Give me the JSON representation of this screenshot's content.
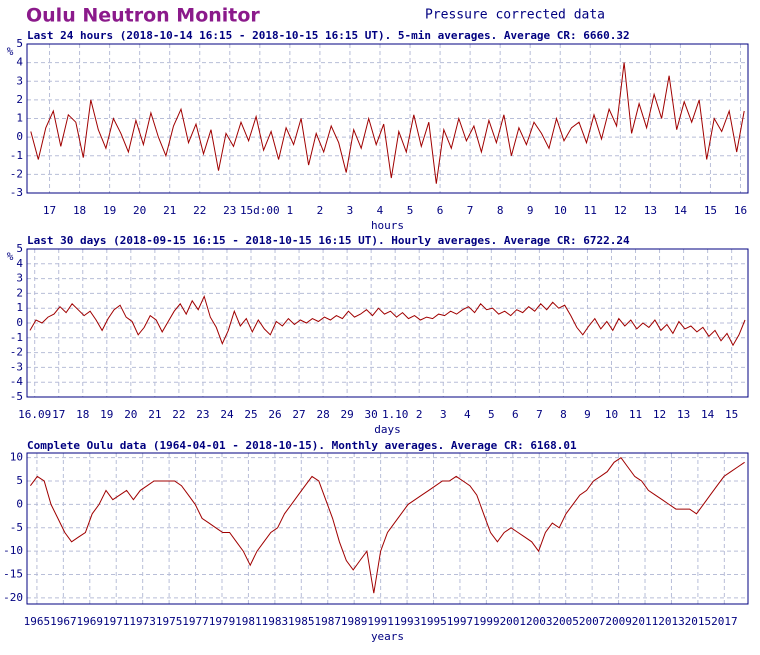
{
  "header": {
    "title": "Oulu Neutron Monitor",
    "subtitle": "Pressure corrected data"
  },
  "chart_data": [
    {
      "type": "line",
      "title": "Last 24 hours (2018-10-14 16:15 - 2018-10-15 16:15 UT). 5-min averages. Average CR: 6660.32",
      "y_label": "%",
      "x_label": "hours",
      "color": "#a00000",
      "grid": true,
      "xlim": [
        0,
        24
      ],
      "ylim": [
        -3,
        5
      ],
      "yticks": [
        -3,
        -2,
        -1,
        0,
        1,
        2,
        3,
        4,
        5
      ],
      "xticks": [
        {
          "value": 0.75,
          "label": "17"
        },
        {
          "value": 1.75,
          "label": "18"
        },
        {
          "value": 2.75,
          "label": "19"
        },
        {
          "value": 3.75,
          "label": "20"
        },
        {
          "value": 4.75,
          "label": "21"
        },
        {
          "value": 5.75,
          "label": "22"
        },
        {
          "value": 6.75,
          "label": "23"
        },
        {
          "value": 7.75,
          "label": "15d:00"
        },
        {
          "value": 8.75,
          "label": "1"
        },
        {
          "value": 9.75,
          "label": "2"
        },
        {
          "value": 10.75,
          "label": "3"
        },
        {
          "value": 11.75,
          "label": "4"
        },
        {
          "value": 12.75,
          "label": "5"
        },
        {
          "value": 13.75,
          "label": "6"
        },
        {
          "value": 14.75,
          "label": "7"
        },
        {
          "value": 15.75,
          "label": "8"
        },
        {
          "value": 16.75,
          "label": "9"
        },
        {
          "value": 17.75,
          "label": "10"
        },
        {
          "value": 18.75,
          "label": "11"
        },
        {
          "value": 19.75,
          "label": "12"
        },
        {
          "value": 20.75,
          "label": "13"
        },
        {
          "value": 21.75,
          "label": "14"
        },
        {
          "value": 22.75,
          "label": "15"
        },
        {
          "value": 23.75,
          "label": "16"
        }
      ],
      "values": [
        0.3,
        -1.2,
        0.5,
        1.4,
        -0.5,
        1.2,
        0.8,
        -1.1,
        2.0,
        0.4,
        -0.6,
        1.0,
        0.2,
        -0.8,
        0.9,
        -0.4,
        1.3,
        0.0,
        -1.0,
        0.6,
        1.5,
        -0.3,
        0.7,
        -0.9,
        0.4,
        -1.8,
        0.2,
        -0.5,
        0.8,
        -0.2,
        1.1,
        -0.7,
        0.3,
        -1.2,
        0.5,
        -0.4,
        1.0,
        -1.5,
        0.2,
        -0.8,
        0.6,
        -0.3,
        -1.9,
        0.4,
        -0.6,
        1.0,
        -0.4,
        0.7,
        -2.2,
        0.3,
        -0.8,
        1.2,
        -0.5,
        0.8,
        -2.5,
        0.4,
        -0.6,
        1.0,
        -0.2,
        0.6,
        -0.8,
        0.9,
        -0.3,
        1.2,
        -1.0,
        0.5,
        -0.4,
        0.8,
        0.2,
        -0.6,
        1.0,
        -0.2,
        0.5,
        0.8,
        -0.3,
        1.2,
        -0.1,
        1.5,
        0.6,
        4.0,
        0.2,
        1.8,
        0.5,
        2.3,
        1.0,
        3.3,
        0.4,
        1.9,
        0.8,
        2.0,
        -1.2,
        1.0,
        0.3,
        1.4,
        -0.8,
        1.4
      ]
    },
    {
      "type": "line",
      "title": "Last 30 days (2018-09-15 16:15 - 2018-10-15 16:15 UT). Hourly averages. Average CR: 6722.24",
      "y_label": "%",
      "x_label": "days",
      "color": "#a00000",
      "grid": true,
      "xlim": [
        0,
        30
      ],
      "ylim": [
        -5,
        5
      ],
      "yticks": [
        -5,
        -4,
        -3,
        -2,
        -1,
        0,
        1,
        2,
        3,
        4,
        5
      ],
      "xticks": [
        {
          "value": 0.32,
          "label": "16.09"
        },
        {
          "value": 1.32,
          "label": "17"
        },
        {
          "value": 2.32,
          "label": "18"
        },
        {
          "value": 3.32,
          "label": "19"
        },
        {
          "value": 4.32,
          "label": "20"
        },
        {
          "value": 5.32,
          "label": "21"
        },
        {
          "value": 6.32,
          "label": "22"
        },
        {
          "value": 7.32,
          "label": "23"
        },
        {
          "value": 8.32,
          "label": "24"
        },
        {
          "value": 9.32,
          "label": "25"
        },
        {
          "value": 10.32,
          "label": "26"
        },
        {
          "value": 11.32,
          "label": "27"
        },
        {
          "value": 12.32,
          "label": "28"
        },
        {
          "value": 13.32,
          "label": "29"
        },
        {
          "value": 14.32,
          "label": "30"
        },
        {
          "value": 15.32,
          "label": "1.10"
        },
        {
          "value": 16.32,
          "label": "2"
        },
        {
          "value": 17.32,
          "label": "3"
        },
        {
          "value": 18.32,
          "label": "4"
        },
        {
          "value": 19.32,
          "label": "5"
        },
        {
          "value": 20.32,
          "label": "6"
        },
        {
          "value": 21.32,
          "label": "7"
        },
        {
          "value": 22.32,
          "label": "8"
        },
        {
          "value": 23.32,
          "label": "9"
        },
        {
          "value": 24.32,
          "label": "10"
        },
        {
          "value": 25.32,
          "label": "11"
        },
        {
          "value": 26.32,
          "label": "12"
        },
        {
          "value": 27.32,
          "label": "13"
        },
        {
          "value": 28.32,
          "label": "14"
        },
        {
          "value": 29.32,
          "label": "15"
        }
      ],
      "values": [
        -0.5,
        0.2,
        0.0,
        0.4,
        0.6,
        1.1,
        0.7,
        1.3,
        0.9,
        0.5,
        0.8,
        0.2,
        -0.5,
        0.3,
        0.9,
        1.2,
        0.4,
        0.1,
        -0.8,
        -0.3,
        0.5,
        0.2,
        -0.6,
        0.1,
        0.8,
        1.3,
        0.6,
        1.5,
        0.9,
        1.8,
        0.4,
        -0.3,
        -1.4,
        -0.5,
        0.8,
        -0.2,
        0.3,
        -0.6,
        0.2,
        -0.4,
        -0.8,
        0.1,
        -0.2,
        0.3,
        -0.1,
        0.2,
        0.0,
        0.3,
        0.1,
        0.4,
        0.2,
        0.5,
        0.3,
        0.8,
        0.4,
        0.6,
        0.9,
        0.5,
        1.0,
        0.6,
        0.8,
        0.4,
        0.7,
        0.3,
        0.5,
        0.2,
        0.4,
        0.3,
        0.6,
        0.5,
        0.8,
        0.6,
        0.9,
        1.1,
        0.7,
        1.3,
        0.9,
        1.0,
        0.6,
        0.8,
        0.5,
        0.9,
        0.7,
        1.1,
        0.8,
        1.3,
        0.9,
        1.4,
        1.0,
        1.2,
        0.5,
        -0.3,
        -0.8,
        -0.2,
        0.3,
        -0.4,
        0.1,
        -0.5,
        0.3,
        -0.2,
        0.2,
        -0.4,
        0.0,
        -0.3,
        0.2,
        -0.5,
        -0.1,
        -0.7,
        0.1,
        -0.4,
        -0.2,
        -0.6,
        -0.3,
        -0.9,
        -0.5,
        -1.2,
        -0.7,
        -1.5,
        -0.8,
        0.2
      ]
    },
    {
      "type": "line",
      "title": "Complete Oulu data (1964-04-01 - 2018-10-15). Monthly averages. Average CR: 6168.01",
      "x_label": "years",
      "color": "#a00000",
      "grid": true,
      "xlim": [
        1964.25,
        2018.79
      ],
      "ylim": [
        -21.3,
        11
      ],
      "yticks": [
        -20,
        -15,
        -10,
        -5,
        0,
        5,
        10
      ],
      "xticks": [
        1965,
        1967,
        1969,
        1971,
        1973,
        1975,
        1977,
        1979,
        1981,
        1983,
        1985,
        1987,
        1989,
        1991,
        1993,
        1995,
        1997,
        1999,
        2001,
        2003,
        2005,
        2007,
        2009,
        2011,
        2013,
        2015,
        2017
      ],
      "values": [
        4,
        6,
        5,
        0,
        -3,
        -6,
        -8,
        -7,
        -6,
        -2,
        0,
        3,
        1,
        2,
        3,
        1,
        3,
        4,
        5,
        5,
        5,
        5,
        4,
        2,
        0,
        -3,
        -4,
        -5,
        -6,
        -6,
        -8,
        -10,
        -13,
        -10,
        -8,
        -6,
        -5,
        -2,
        0,
        2,
        4,
        6,
        5,
        1,
        -3,
        -8,
        -12,
        -14,
        -12,
        -10,
        -19,
        -10,
        -6,
        -4,
        -2,
        0,
        1,
        2,
        3,
        4,
        5,
        5,
        6,
        5,
        4,
        2,
        -2,
        -6,
        -8,
        -6,
        -5,
        -6,
        -7,
        -8,
        -10,
        -6,
        -4,
        -5,
        -2,
        0,
        2,
        3,
        5,
        6,
        7,
        9,
        10,
        8,
        6,
        5,
        3,
        2,
        1,
        0,
        -1,
        -1,
        -1,
        -2,
        0,
        2,
        4,
        6,
        7,
        8,
        9
      ]
    }
  ]
}
